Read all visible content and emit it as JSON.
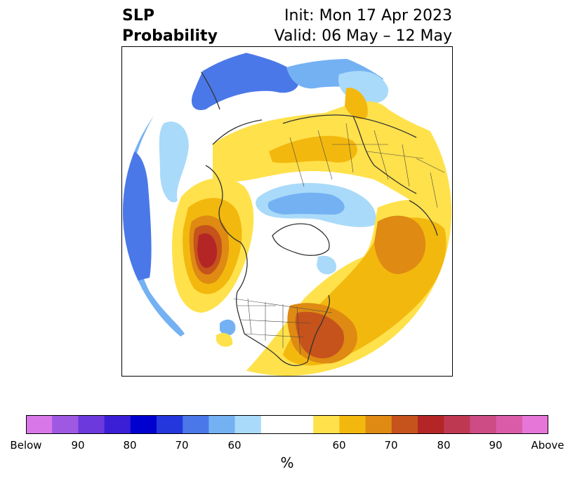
{
  "title": {
    "line1_left": "SLP",
    "line2_left": "Probability",
    "line1_right": "Init: Mon 17 Apr 2023",
    "line2_right": "Valid: 06 May – 12 May"
  },
  "colorbar": {
    "colors": [
      "#d878e8",
      "#9f58e2",
      "#6c39dc",
      "#3a1fd6",
      "#0000cf",
      "#2437dc",
      "#4a78e8",
      "#74b1f3",
      "#a9daf9",
      "#ffffff",
      "#ffe14b",
      "#f3b80e",
      "#de8a13",
      "#c6521c",
      "#b32625",
      "#bf3852",
      "#cd4c85",
      "#da5ca8",
      "#e676d8"
    ],
    "ticks": [
      "Below",
      "90",
      "80",
      "70",
      "60",
      "60",
      "70",
      "80",
      "90",
      "Above"
    ],
    "unit": "%"
  }
}
